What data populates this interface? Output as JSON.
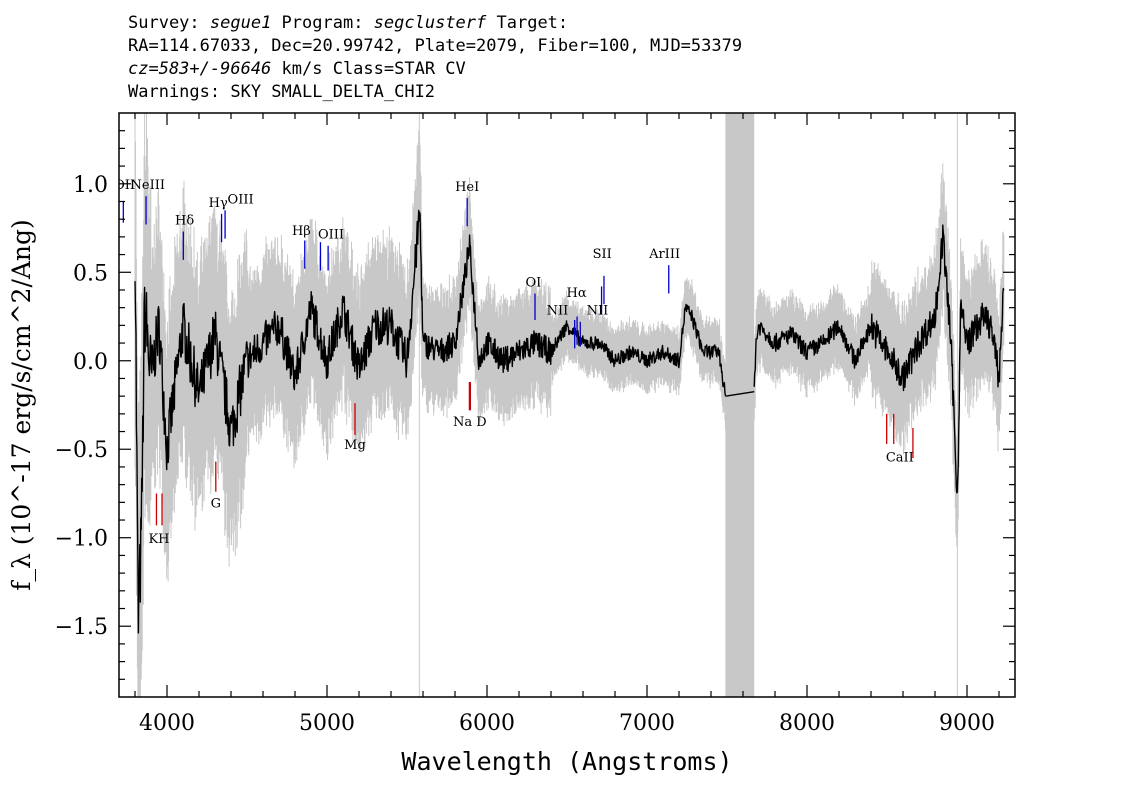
{
  "header": {
    "line1": {
      "survey_label": "Survey: ",
      "survey": "segue1",
      "program_label": " Program: ",
      "program": "segclusterf",
      "target_label": " Target:"
    },
    "line2": "RA=114.67033, Dec=20.99742, Plate=2079, Fiber=100, MJD=53379",
    "line3": {
      "cz": "cz=583+/-96646",
      "rest": " km/s Class=STAR CV"
    },
    "line4": "Warnings: SKY SMALL_DELTA_CHI2"
  },
  "colors": {
    "flux": "#000000",
    "error": "#c8c8c8",
    "emission": "#0000cc",
    "absorption": "#cc0000",
    "masked_band": "#c8c8c8",
    "axes": "#000000"
  },
  "chart_data": {
    "type": "line",
    "xlabel": "Wavelength (Angstroms)",
    "ylabel": "f_λ (10^-17 erg/s/cm^2/Ang)",
    "xlim": [
      3700,
      9300
    ],
    "ylim": [
      -1.9,
      1.4
    ],
    "x_ticks": [
      4000,
      5000,
      6000,
      7000,
      8000,
      9000
    ],
    "y_ticks": [
      -1.5,
      -1.0,
      -0.5,
      0.0,
      0.5,
      1.0
    ],
    "y_tick_labels": [
      "−1.5",
      "−1.0",
      "−0.5",
      "0.0",
      "0.5",
      "1.0"
    ],
    "masked_band": [
      7490,
      7670
    ],
    "vertical_lines": [
      5577,
      8940
    ],
    "series": [
      {
        "x": [
          3800,
          3820,
          3840,
          3860,
          3900,
          3950,
          4000,
          4100,
          4200,
          4300,
          4400,
          4500,
          4600,
          4700,
          4800,
          4900,
          5000,
          5100,
          5200,
          5300,
          5400,
          5500,
          5580,
          5600,
          5700,
          5800,
          5890,
          5950,
          6000,
          6100,
          6200,
          6300,
          6400,
          6500,
          6600,
          6700,
          6800,
          6900,
          7000,
          7100,
          7200,
          7240,
          7280,
          7350,
          7450,
          7490,
          7660,
          7680,
          7700,
          7800,
          7900,
          8000,
          8100,
          8200,
          8300,
          8400,
          8500,
          8600,
          8700,
          8800,
          8850,
          8900,
          8940,
          8960,
          9000,
          9100,
          9150,
          9200,
          9230
        ],
        "y": [
          0.7,
          -1.5,
          -1.0,
          0.3,
          -0.1,
          0.2,
          -0.5,
          0.2,
          -0.2,
          0.15,
          -0.4,
          0.0,
          0.1,
          0.2,
          -0.1,
          0.3,
          0.0,
          0.3,
          -0.05,
          0.2,
          0.2,
          0.0,
          0.85,
          0.1,
          0.05,
          0.1,
          0.65,
          0.0,
          0.1,
          0.0,
          0.05,
          0.1,
          0.05,
          0.2,
          0.1,
          0.1,
          0.0,
          0.05,
          0.0,
          0.05,
          0.0,
          0.3,
          0.25,
          0.05,
          0.05,
          -0.2,
          -0.45,
          0.1,
          0.2,
          0.1,
          0.15,
          0.05,
          0.1,
          0.2,
          0.0,
          0.2,
          0.05,
          -0.1,
          0.1,
          0.25,
          0.7,
          0.1,
          -0.8,
          0.3,
          0.1,
          0.25,
          0.2,
          -0.1,
          0.45
        ]
      }
    ],
    "emission_lines": [
      {
        "label": "OII",
        "x": 3727,
        "y_from": 0.78,
        "y_to": 0.9
      },
      {
        "label": "NeIII",
        "x": 3869,
        "y_from": 0.77,
        "y_to": 0.93
      },
      {
        "label": "Hδ",
        "x": 4102,
        "y_from": 0.57,
        "y_to": 0.73
      },
      {
        "label": "Hγ",
        "x": 4341,
        "y_from": 0.67,
        "y_to": 0.83
      },
      {
        "label": "OIII",
        "x": 4363,
        "y_from": 0.69,
        "y_to": 0.85
      },
      {
        "label": "Hβ",
        "x": 4861,
        "y_from": 0.52,
        "y_to": 0.68
      },
      {
        "label": "OIII",
        "x": 4959,
        "y_from": 0.51,
        "y_to": 0.67
      },
      {
        "label": "OIII",
        "x": 5007,
        "y_from": 0.51,
        "y_to": 0.65
      },
      {
        "label": "HeI",
        "x": 5876,
        "y_from": 0.76,
        "y_to": 0.92
      },
      {
        "label": "OI",
        "x": 6300,
        "y_from": 0.23,
        "y_to": 0.38
      },
      {
        "label": "NII",
        "x": 6548,
        "y_from": 0.07,
        "y_to": 0.23
      },
      {
        "label": "Hα",
        "x": 6563,
        "y_from": 0.09,
        "y_to": 0.25
      },
      {
        "label": "NII",
        "x": 6583,
        "y_from": 0.08,
        "y_to": 0.22
      },
      {
        "label": "SII",
        "x": 6716,
        "y_from": 0.26,
        "y_to": 0.42
      },
      {
        "label": "SII",
        "x": 6731,
        "y_from": 0.32,
        "y_to": 0.48
      },
      {
        "label": "ArIII",
        "x": 7136,
        "y_from": 0.38,
        "y_to": 0.54
      }
    ],
    "absorption_lines": [
      {
        "x": 3934,
        "y_from": -0.93,
        "y_to": -0.75
      },
      {
        "x": 3969,
        "y_from": -0.93,
        "y_to": -0.75
      },
      {
        "x": 4305,
        "y_from": -0.74,
        "y_to": -0.57
      },
      {
        "x": 5175,
        "y_from": -0.42,
        "y_to": -0.24
      },
      {
        "x": 5890,
        "y_from": -0.28,
        "y_to": -0.12
      },
      {
        "x": 5896,
        "y_from": -0.28,
        "y_to": -0.12
      },
      {
        "x": 8498,
        "y_from": -0.47,
        "y_to": -0.3
      },
      {
        "x": 8542,
        "y_from": -0.47,
        "y_to": -0.3
      },
      {
        "x": 8662,
        "y_from": -0.55,
        "y_to": -0.38
      }
    ],
    "line_labels": [
      {
        "text": "OII",
        "x": 3735,
        "y": 0.97
      },
      {
        "text": "NeIII",
        "x": 3880,
        "y": 0.97
      },
      {
        "text": "Hδ",
        "x": 4110,
        "y": 0.77
      },
      {
        "text": "Hγ",
        "x": 4320,
        "y": 0.87
      },
      {
        "text": "OIII",
        "x": 4460,
        "y": 0.89
      },
      {
        "text": "Hβ",
        "x": 4840,
        "y": 0.71
      },
      {
        "text": "OIII",
        "x": 5025,
        "y": 0.69
      },
      {
        "text": "HeI",
        "x": 5876,
        "y": 0.96
      },
      {
        "text": "OI",
        "x": 6290,
        "y": 0.42
      },
      {
        "text": "NII",
        "x": 6440,
        "y": 0.26
      },
      {
        "text": "Hα",
        "x": 6560,
        "y": 0.36
      },
      {
        "text": "NII",
        "x": 6690,
        "y": 0.26
      },
      {
        "text": "SII",
        "x": 6720,
        "y": 0.58
      },
      {
        "text": "ArIII",
        "x": 7110,
        "y": 0.58
      },
      {
        "text": "KH",
        "x": 3950,
        "y": -1.03
      },
      {
        "text": "G",
        "x": 4305,
        "y": -0.83
      },
      {
        "text": "Mg",
        "x": 5175,
        "y": -0.5
      },
      {
        "text": "Na D",
        "x": 5893,
        "y": -0.37
      },
      {
        "text": "CaII",
        "x": 8580,
        "y": -0.57
      }
    ]
  }
}
